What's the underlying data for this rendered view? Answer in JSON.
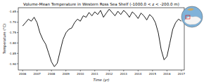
{
  "chart_data": {
    "type": "line",
    "title": "Volume-Mean Temperature in Western Ross Sea Shelf (-1000.0 < z < -200.0 m)",
    "x_label": "Time (yr)",
    "y_label": "Temperature (°C)",
    "x": [
      2006.0,
      2006.2,
      2006.4,
      2006.6,
      2006.8,
      2007.0,
      2007.2,
      2007.4,
      2007.6,
      2007.8,
      2008.0,
      2008.2,
      2008.4,
      2008.6,
      2008.8,
      2009.0,
      2009.2,
      2009.4,
      2009.6,
      2009.8,
      2010.0,
      2010.2,
      2010.4,
      2010.6,
      2010.8,
      2011.0,
      2011.2,
      2011.4,
      2011.6,
      2011.8,
      2012.0,
      2012.2,
      2012.4,
      2012.6,
      2012.8,
      2013.0,
      2013.2,
      2013.4,
      2013.6,
      2013.8,
      2014.0,
      2014.2,
      2014.4,
      2014.6,
      2014.8,
      2015.0,
      2015.2,
      2015.4,
      2015.6,
      2015.8,
      2016.0,
      2016.2,
      2016.4,
      2016.6,
      2016.8,
      2017.0
    ],
    "series": [
      {
        "color": "#000000",
        "values": [
          -1.718,
          -1.702,
          -1.685,
          -1.695,
          -1.676,
          -1.702,
          -1.751,
          -1.783,
          -1.806,
          -1.848,
          -1.891,
          -1.914,
          -1.897,
          -1.839,
          -1.783,
          -1.751,
          -1.734,
          -1.728,
          -1.702,
          -1.685,
          -1.695,
          -1.669,
          -1.676,
          -1.653,
          -1.669,
          -1.65,
          -1.663,
          -1.643,
          -1.676,
          -1.656,
          -1.637,
          -1.653,
          -1.669,
          -1.647,
          -1.663,
          -1.643,
          -1.656,
          -1.676,
          -1.65,
          -1.663,
          -1.682,
          -1.656,
          -1.669,
          -1.689,
          -1.663,
          -1.676,
          -1.702,
          -1.751,
          -1.832,
          -1.881,
          -1.865,
          -1.8,
          -1.734,
          -1.702,
          -1.685,
          -1.695
        ]
      }
    ],
    "xlim": [
      2005.7,
      2017.2
    ],
    "xticks": [
      2006,
      2007,
      2008,
      2009,
      2010,
      2011,
      2012,
      2013,
      2014,
      2015,
      2016,
      2017
    ],
    "ylim": [
      -1.93,
      -1.63
    ],
    "yticks": [
      {
        "value": -1.9,
        "label": "-1.90"
      },
      {
        "value": -1.85,
        "label": "-1.85"
      },
      {
        "value": -1.8,
        "label": "-1.80"
      },
      {
        "value": -1.75,
        "label": "-1.75"
      },
      {
        "value": -1.7,
        "label": "-1.70"
      },
      {
        "value": -1.65,
        "label": "-1.65"
      }
    ],
    "grid": false
  }
}
